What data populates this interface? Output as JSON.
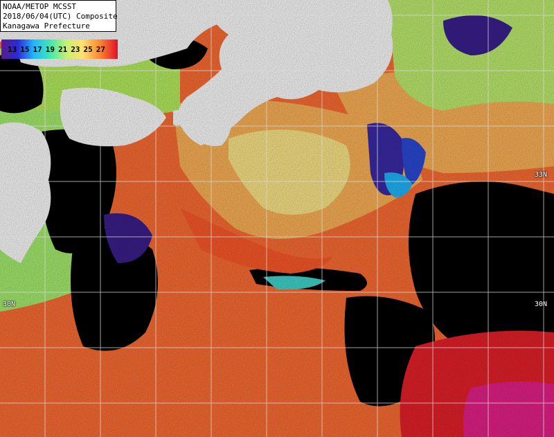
{
  "title": {
    "line1": "NOAA/METOP MCSST",
    "line2": "2018/06/04(UTC) Composite",
    "line3": "Kanagawa Prefecture"
  },
  "legend": {
    "values": [
      "13",
      "15",
      "17",
      "19",
      "21",
      "23",
      "25",
      "27"
    ],
    "colors": [
      "#3a1f8c",
      "#2b2ad6",
      "#1fb3ff",
      "#40e0b0",
      "#c8f070",
      "#fff070",
      "#ffa030",
      "#e8201f"
    ]
  },
  "latitude_labels": {
    "lat33": "33N",
    "lat30_right": "30N",
    "lat30_left": "30N"
  },
  "colors": {
    "land": "#ffffff",
    "cloud": "#000000",
    "grid": "#d8d8d8",
    "warm": "#ff6a30",
    "hot": "#e8202a",
    "mild": "#ffc060",
    "cool": "#b8f060",
    "cold": "#3030c0"
  }
}
